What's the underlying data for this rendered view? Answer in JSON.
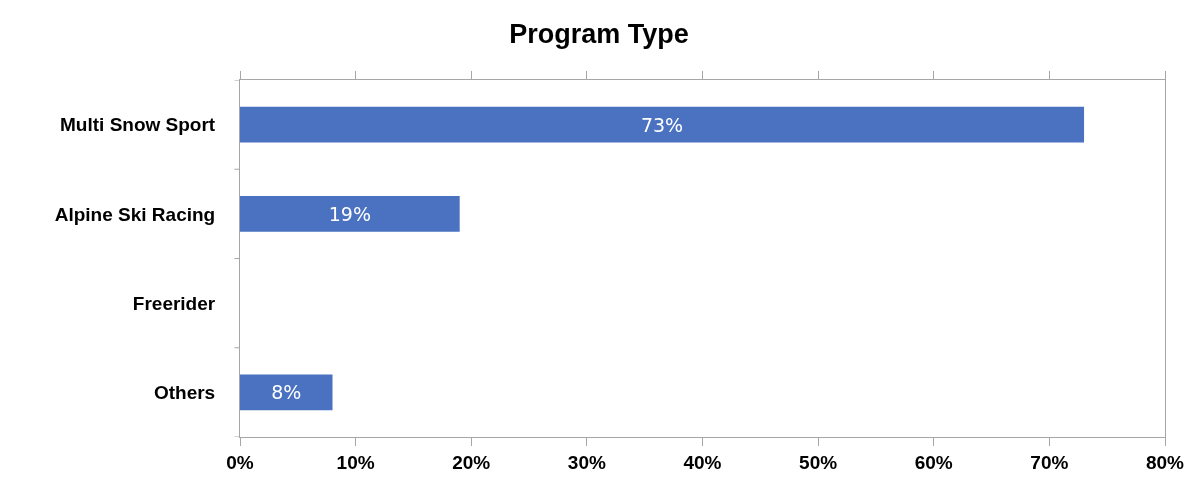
{
  "chart_data": {
    "type": "bar",
    "orientation": "horizontal",
    "title": "Program Type",
    "categories": [
      "Multi Snow Sport",
      "Alpine Ski Racing",
      "Freerider",
      "Others"
    ],
    "values": [
      73,
      19,
      0,
      8
    ],
    "value_labels": [
      "73%",
      "19%",
      null,
      "8%"
    ],
    "color": "#4a72c0",
    "xlim": [
      0,
      80
    ],
    "xticks": [
      {
        "value": 0,
        "label": "0%"
      },
      {
        "value": 10,
        "label": "10%"
      },
      {
        "value": 20,
        "label": "20%"
      },
      {
        "value": 30,
        "label": "30%"
      },
      {
        "value": 40,
        "label": "40%"
      },
      {
        "value": 50,
        "label": "50%"
      },
      {
        "value": 60,
        "label": "60%"
      },
      {
        "value": 70,
        "label": "70%"
      },
      {
        "value": 80,
        "label": "80%"
      }
    ],
    "legend": false
  }
}
